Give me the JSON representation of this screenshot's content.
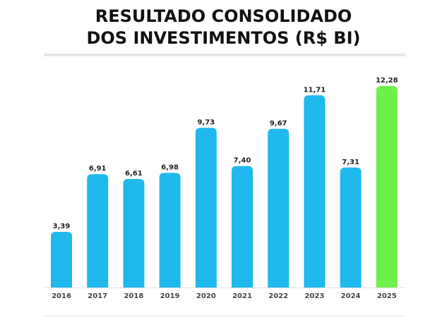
{
  "chart_data": {
    "type": "bar",
    "title": "RESULTADO CONSOLIDADO DOS INVESTIMENTOS (R$ BI)",
    "title_lines": [
      "RESULTADO CONSOLIDADO",
      "DOS INVESTIMENTOS (R$ BI)"
    ],
    "xlabel": "",
    "ylabel": "",
    "categories": [
      "2016",
      "2017",
      "2018",
      "2019",
      "2020",
      "2021",
      "2022",
      "2023",
      "2024",
      "2025"
    ],
    "values": [
      3.39,
      6.91,
      6.61,
      6.98,
      9.73,
      7.4,
      9.67,
      11.71,
      7.31,
      12.28
    ],
    "value_labels": [
      "3,39",
      "6,91",
      "6,61",
      "6,98",
      "9,73",
      "7,40",
      "9,67",
      "11,71",
      "7,31",
      "12,28"
    ],
    "highlight_index": 9,
    "colors": {
      "bar": "#1fb9ee",
      "highlight": "#6ef04a",
      "axis": "#e0e0e0",
      "separator": "#e6e6e6"
    },
    "ylim": [
      0,
      12.28
    ],
    "grid": false,
    "legend": "none"
  }
}
